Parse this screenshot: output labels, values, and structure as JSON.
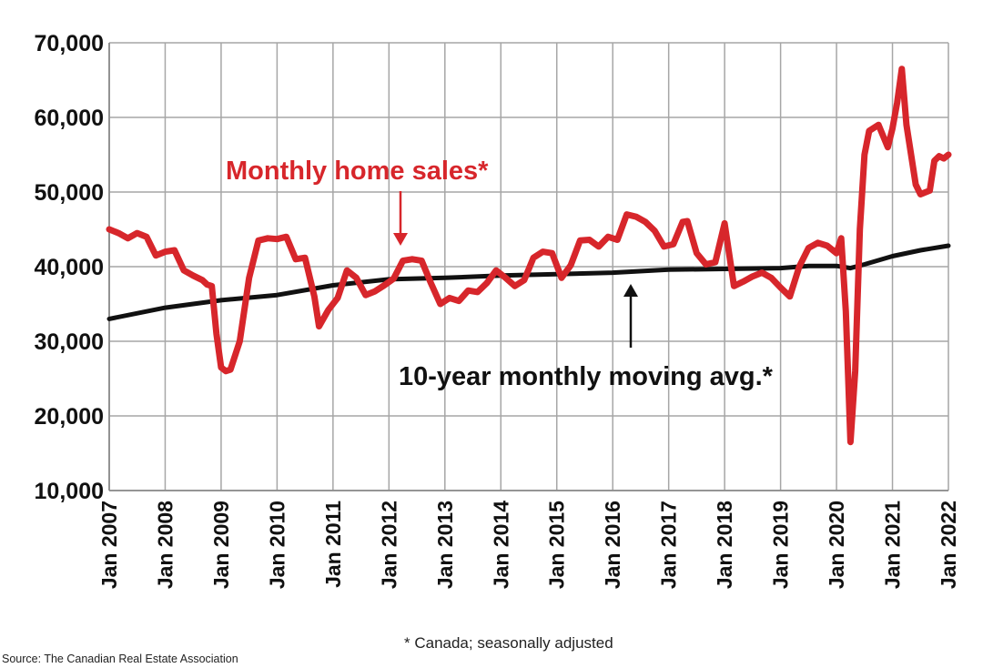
{
  "chart_data": {
    "type": "line",
    "ylim": [
      10000,
      70000
    ],
    "yticks": [
      10000,
      20000,
      30000,
      40000,
      50000,
      60000,
      70000
    ],
    "ytick_labels": [
      "10,000",
      "20,000",
      "30,000",
      "40,000",
      "50,000",
      "60,000",
      "70,000"
    ],
    "x_range": [
      "2007-01",
      "2022-01"
    ],
    "xtick_labels": [
      "Jan 2007",
      "Jan 2008",
      "Jan 2009",
      "Jan 2010",
      "Jan 2011",
      "Jan 2012",
      "Jan 2013",
      "Jan 2014",
      "Jan 2015",
      "Jan 2016",
      "Jan 2017",
      "Jan 2018",
      "Jan 2019",
      "Jan 2020",
      "Jan 2021",
      "Jan 2022"
    ],
    "grid": true,
    "series": [
      {
        "name": "Monthly home sales*",
        "color": "#d7262b",
        "points": [
          [
            "2007-01",
            45000
          ],
          [
            "2007-03",
            44500
          ],
          [
            "2007-05",
            43800
          ],
          [
            "2007-07",
            44500
          ],
          [
            "2007-09",
            44000
          ],
          [
            "2007-11",
            41500
          ],
          [
            "2008-01",
            42000
          ],
          [
            "2008-03",
            42200
          ],
          [
            "2008-05",
            39500
          ],
          [
            "2008-07",
            38800
          ],
          [
            "2008-09",
            38200
          ],
          [
            "2008-10",
            37600
          ],
          [
            "2008-11",
            37400
          ],
          [
            "2008-12",
            31000
          ],
          [
            "2009-01",
            26500
          ],
          [
            "2009-02",
            26000
          ],
          [
            "2009-03",
            26200
          ],
          [
            "2009-05",
            30000
          ],
          [
            "2009-07",
            38500
          ],
          [
            "2009-09",
            43500
          ],
          [
            "2009-11",
            43800
          ],
          [
            "2010-01",
            43700
          ],
          [
            "2010-03",
            44000
          ],
          [
            "2010-05",
            41000
          ],
          [
            "2010-07",
            41200
          ],
          [
            "2010-09",
            36000
          ],
          [
            "2010-10",
            32000
          ],
          [
            "2010-12",
            34200
          ],
          [
            "2011-02",
            35800
          ],
          [
            "2011-04",
            39500
          ],
          [
            "2011-06",
            38500
          ],
          [
            "2011-08",
            36200
          ],
          [
            "2011-10",
            36700
          ],
          [
            "2011-12",
            37500
          ],
          [
            "2012-02",
            38400
          ],
          [
            "2012-04",
            40800
          ],
          [
            "2012-06",
            41000
          ],
          [
            "2012-08",
            40800
          ],
          [
            "2012-10",
            37800
          ],
          [
            "2012-12",
            35000
          ],
          [
            "2013-02",
            35800
          ],
          [
            "2013-04",
            35400
          ],
          [
            "2013-06",
            36800
          ],
          [
            "2013-08",
            36600
          ],
          [
            "2013-10",
            37800
          ],
          [
            "2013-12",
            39500
          ],
          [
            "2014-02",
            38500
          ],
          [
            "2014-04",
            37400
          ],
          [
            "2014-06",
            38200
          ],
          [
            "2014-08",
            41200
          ],
          [
            "2014-10",
            42000
          ],
          [
            "2014-12",
            41800
          ],
          [
            "2015-02",
            38500
          ],
          [
            "2015-04",
            40200
          ],
          [
            "2015-06",
            43500
          ],
          [
            "2015-08",
            43600
          ],
          [
            "2015-10",
            42700
          ],
          [
            "2015-12",
            44000
          ],
          [
            "2016-02",
            43600
          ],
          [
            "2016-04",
            47000
          ],
          [
            "2016-06",
            46700
          ],
          [
            "2016-08",
            46000
          ],
          [
            "2016-10",
            44800
          ],
          [
            "2016-12",
            42700
          ],
          [
            "2017-02",
            43000
          ],
          [
            "2017-04",
            46000
          ],
          [
            "2017-05",
            46100
          ],
          [
            "2017-07",
            41800
          ],
          [
            "2017-09",
            40300
          ],
          [
            "2017-11",
            40600
          ],
          [
            "2018-01",
            45800
          ],
          [
            "2018-03",
            37400
          ],
          [
            "2018-05",
            38000
          ],
          [
            "2018-07",
            38700
          ],
          [
            "2018-09",
            39200
          ],
          [
            "2018-11",
            38500
          ],
          [
            "2019-01",
            37200
          ],
          [
            "2019-03",
            36000
          ],
          [
            "2019-05",
            40000
          ],
          [
            "2019-07",
            42500
          ],
          [
            "2019-09",
            43200
          ],
          [
            "2019-11",
            42800
          ],
          [
            "2020-01",
            41800
          ],
          [
            "2020-02",
            43800
          ],
          [
            "2020-03",
            34000
          ],
          [
            "2020-04",
            16500
          ],
          [
            "2020-05",
            26000
          ],
          [
            "2020-06",
            45000
          ],
          [
            "2020-07",
            55000
          ],
          [
            "2020-08",
            58200
          ],
          [
            "2020-10",
            59000
          ],
          [
            "2020-12",
            56000
          ],
          [
            "2021-01",
            58500
          ],
          [
            "2021-02",
            62000
          ],
          [
            "2021-03",
            66500
          ],
          [
            "2021-04",
            59000
          ],
          [
            "2021-06",
            51000
          ],
          [
            "2021-07",
            49700
          ],
          [
            "2021-09",
            50200
          ],
          [
            "2021-10",
            54200
          ],
          [
            "2021-11",
            54800
          ],
          [
            "2021-12",
            54500
          ],
          [
            "2022-01",
            55000
          ]
        ]
      },
      {
        "name": "10-year monthly moving avg.*",
        "color": "#111111",
        "points": [
          [
            "2007-01",
            33000
          ],
          [
            "2008-01",
            34500
          ],
          [
            "2009-01",
            35500
          ],
          [
            "2010-01",
            36200
          ],
          [
            "2011-01",
            37500
          ],
          [
            "2012-01",
            38300
          ],
          [
            "2013-01",
            38500
          ],
          [
            "2014-01",
            38800
          ],
          [
            "2015-01",
            39000
          ],
          [
            "2016-01",
            39200
          ],
          [
            "2017-01",
            39600
          ],
          [
            "2018-01",
            39700
          ],
          [
            "2019-01",
            39800
          ],
          [
            "2019-07",
            40100
          ],
          [
            "2020-01",
            40100
          ],
          [
            "2020-04",
            39800
          ],
          [
            "2020-07",
            40300
          ],
          [
            "2021-01",
            41400
          ],
          [
            "2021-07",
            42200
          ],
          [
            "2022-01",
            42800
          ]
        ]
      }
    ],
    "annotations": {
      "sales": "Monthly home sales*",
      "avg": "10-year monthly moving avg.*"
    },
    "footnote": "* Canada; seasonally adjusted",
    "source": "Source: The Canadian Real Estate Association"
  }
}
